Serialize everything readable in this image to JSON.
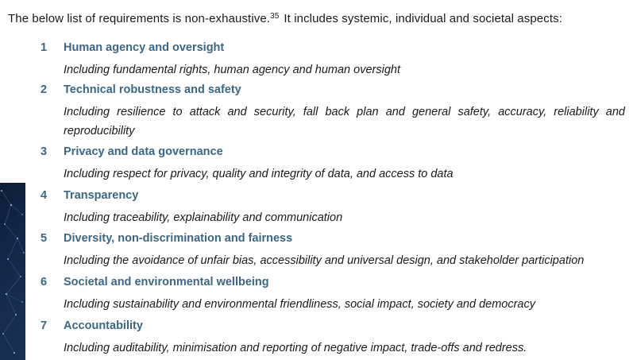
{
  "intro": {
    "text": "The below list of requirements is non-exhaustive.",
    "footnote": "35",
    "text_after": "It includes systemic, individual and societal aspects:"
  },
  "requirements": [
    {
      "number": "1",
      "title": "Human agency and oversight",
      "description": "Including fundamental rights, human agency and human oversight"
    },
    {
      "number": "2",
      "title": "Technical robustness and safety",
      "description": "Including resilience to attack and security, fall back plan and general safety, accuracy, reliability and reproducibility"
    },
    {
      "number": "3",
      "title": "Privacy and data governance",
      "description": "Including respect for privacy, quality and integrity of data, and access to data"
    },
    {
      "number": "4",
      "title": "Transparency",
      "description": "Including traceability, explainability and communication"
    },
    {
      "number": "5",
      "title": "Diversity, non-discrimination and fairness",
      "description": "Including the avoidance of unfair bias, accessibility and universal design, and stakeholder participation"
    },
    {
      "number": "6",
      "title": "Societal and environmental wellbeing",
      "description": "Including sustainability and environmental friendliness, social impact, society and democracy"
    },
    {
      "number": "7",
      "title": "Accountability",
      "description": "Including auditability, minimisation and reporting of negative impact, trade-offs and redress."
    }
  ],
  "colors": {
    "heading": "#3b6785",
    "body_text": "#1a1a1a",
    "decoration": "#14284a"
  }
}
